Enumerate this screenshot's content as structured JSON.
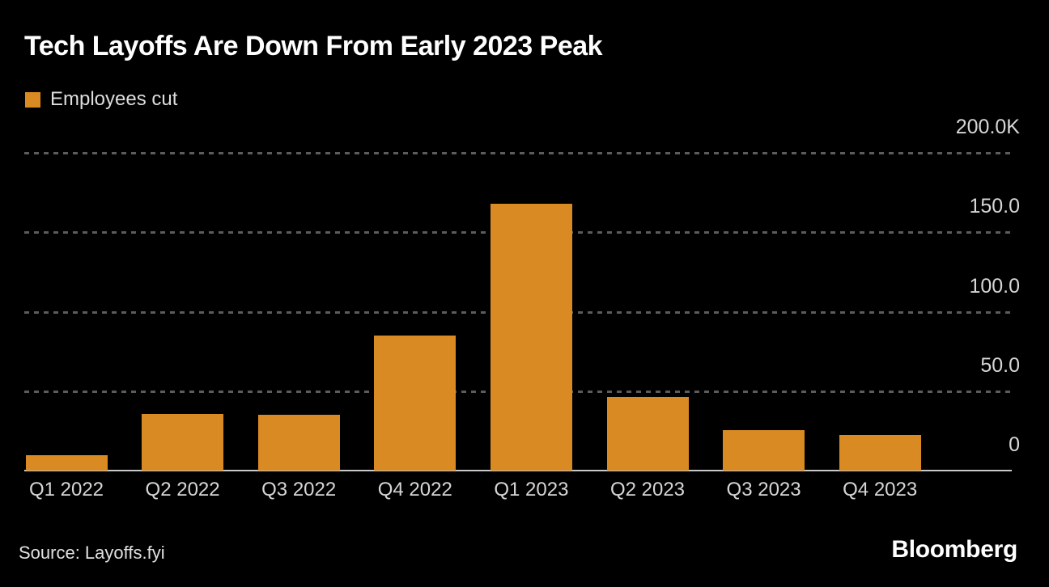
{
  "title": "Tech Layoffs Are Down From Early 2023 Peak",
  "legend": {
    "label": "Employees cut",
    "swatch_color": "#DA8A23"
  },
  "source": "Source: Layoffs.fyi",
  "brand": "Bloomberg",
  "colors": {
    "background": "#000000",
    "bar": "#DA8A23",
    "gridline": "#5c5c5c",
    "axis_line": "#c9c9c9",
    "title_text": "#ffffff",
    "tick_text": "#d6d6d6"
  },
  "chart_data": {
    "type": "bar",
    "title": "Tech Layoffs Are Down From Early 2023 Peak",
    "series_name": "Employees cut",
    "categories": [
      "Q1 2022",
      "Q2 2022",
      "Q3 2022",
      "Q4 2022",
      "Q1 2023",
      "Q2 2023",
      "Q3 2023",
      "Q4 2023"
    ],
    "values": [
      9.5,
      35.5,
      35.0,
      85.0,
      168.0,
      46.5,
      25.5,
      22.5
    ],
    "unit": "thousands of employees",
    "xlabel": "",
    "ylabel": "",
    "ylim": [
      0,
      200
    ],
    "yticks": [
      0,
      50,
      100,
      150,
      200
    ],
    "ytick_labels": [
      "0",
      "50.0",
      "100.0",
      "150.0",
      "200.0K"
    ],
    "grid": "horizontal dashed",
    "value_axis_side": "right",
    "legend_position": "top-left"
  }
}
